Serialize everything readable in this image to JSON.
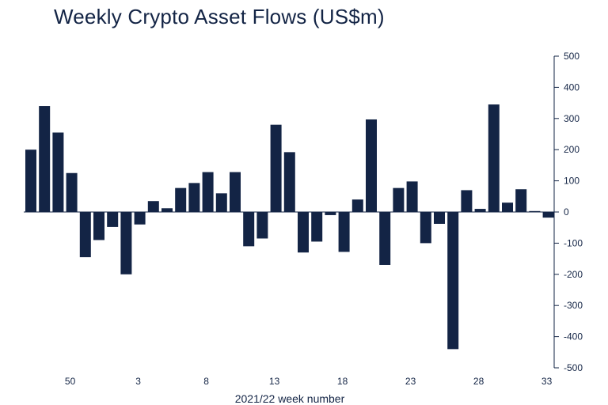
{
  "chart_data": {
    "type": "bar",
    "title": "Weekly Crypto Asset Flows (US$m)",
    "xlabel": "2021/22 week number",
    "ylabel": "",
    "ylim": [
      -500,
      500
    ],
    "yticks": [
      500,
      400,
      300,
      200,
      100,
      0,
      -100,
      -200,
      -300,
      -400,
      -500
    ],
    "x_tick_labels": [
      {
        "index": 3,
        "label": "50"
      },
      {
        "index": 8,
        "label": "3"
      },
      {
        "index": 13,
        "label": "8"
      },
      {
        "index": 18,
        "label": "13"
      },
      {
        "index": 23,
        "label": "18"
      },
      {
        "index": 28,
        "label": "23"
      },
      {
        "index": 33,
        "label": "28"
      },
      {
        "index": 38,
        "label": "33"
      }
    ],
    "values": [
      200,
      340,
      255,
      125,
      -145,
      -90,
      -48,
      -200,
      -40,
      35,
      12,
      77,
      93,
      128,
      60,
      128,
      -110,
      -85,
      280,
      192,
      -130,
      -95,
      -10,
      -128,
      40,
      297,
      -170,
      77,
      98,
      -100,
      -38,
      -440,
      70,
      10,
      345,
      30,
      73,
      3,
      -18
    ],
    "bar_color": "#132445",
    "grid": false,
    "y_axis_position": "right"
  }
}
